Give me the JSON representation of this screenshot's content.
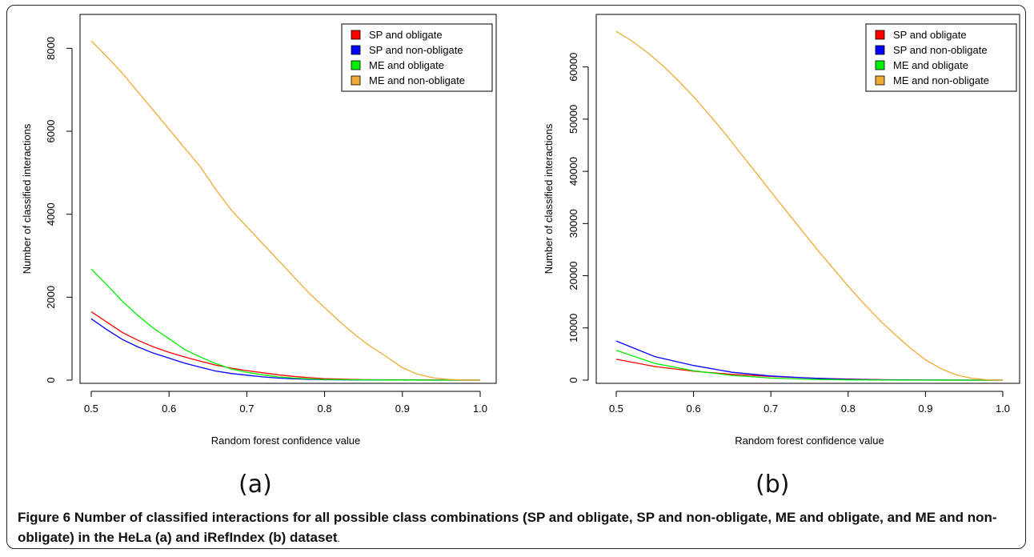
{
  "chart_data": [
    {
      "type": "line",
      "xlabel": "Random forest confidence value",
      "ylabel": "Number of classified interactions",
      "xlim": [
        0.5,
        1.0
      ],
      "ylim": [
        0,
        8200
      ],
      "xticks": [
        "0.5",
        "0.6",
        "0.7",
        "0.8",
        "0.9",
        "1.0"
      ],
      "yticks": [
        "0",
        "2000",
        "4000",
        "6000",
        "8000"
      ],
      "grid": false,
      "legend_position": "top-right",
      "series": [
        {
          "name": "SP and obligate",
          "color": "#ff0000",
          "x": [
            0.5,
            0.52,
            0.54,
            0.56,
            0.58,
            0.6,
            0.62,
            0.64,
            0.66,
            0.68,
            0.7,
            0.72,
            0.74,
            0.76,
            0.78,
            0.8,
            0.85,
            0.9,
            0.95,
            1.0
          ],
          "y": [
            1650,
            1400,
            1150,
            960,
            800,
            670,
            560,
            460,
            360,
            290,
            230,
            180,
            130,
            90,
            60,
            35,
            12,
            4,
            1,
            0
          ]
        },
        {
          "name": "SP and non-obligate",
          "color": "#0000ff",
          "x": [
            0.5,
            0.52,
            0.54,
            0.56,
            0.58,
            0.6,
            0.62,
            0.64,
            0.66,
            0.68,
            0.7,
            0.72,
            0.74,
            0.76,
            0.78,
            0.8,
            0.85,
            0.9,
            0.95,
            1.0
          ],
          "y": [
            1480,
            1220,
            980,
            800,
            650,
            530,
            410,
            310,
            220,
            160,
            120,
            80,
            50,
            30,
            20,
            10,
            4,
            1,
            0,
            0
          ]
        },
        {
          "name": "ME and obligate",
          "color": "#00ee00",
          "x": [
            0.5,
            0.52,
            0.54,
            0.56,
            0.58,
            0.6,
            0.62,
            0.64,
            0.66,
            0.68,
            0.7,
            0.72,
            0.74,
            0.76,
            0.78,
            0.8,
            0.85,
            0.9,
            0.95,
            1.0
          ],
          "y": [
            2680,
            2300,
            1900,
            1560,
            1250,
            1000,
            740,
            560,
            400,
            270,
            190,
            130,
            80,
            50,
            30,
            15,
            5,
            1,
            0,
            0
          ]
        },
        {
          "name": "ME and non-obligate",
          "color": "#eeaa33",
          "x": [
            0.5,
            0.52,
            0.54,
            0.56,
            0.58,
            0.6,
            0.62,
            0.64,
            0.66,
            0.68,
            0.7,
            0.72,
            0.74,
            0.76,
            0.78,
            0.8,
            0.82,
            0.84,
            0.86,
            0.88,
            0.9,
            0.92,
            0.94,
            0.96,
            0.98,
            1.0
          ],
          "y": [
            8180,
            7800,
            7400,
            6950,
            6500,
            6050,
            5600,
            5150,
            4600,
            4100,
            3700,
            3300,
            2900,
            2500,
            2100,
            1750,
            1400,
            1080,
            800,
            560,
            300,
            140,
            55,
            15,
            3,
            0
          ]
        }
      ]
    },
    {
      "type": "line",
      "xlabel": "Random forest confidence value",
      "ylabel": "Number of classified interactions",
      "xlim": [
        0.5,
        1.0
      ],
      "ylim": [
        0,
        67000
      ],
      "xticks": [
        "0.5",
        "0.6",
        "0.7",
        "0.8",
        "0.9",
        "1.0"
      ],
      "yticks": [
        "0",
        "10000",
        "20000",
        "30000",
        "40000",
        "50000",
        "60000"
      ],
      "grid": false,
      "legend_position": "top-right",
      "series": [
        {
          "name": "SP and obligate",
          "color": "#ff0000",
          "x": [
            0.5,
            0.55,
            0.6,
            0.65,
            0.7,
            0.75,
            0.8,
            0.85,
            0.9,
            0.95,
            1.0
          ],
          "y": [
            4000,
            2600,
            1700,
            1100,
            700,
            400,
            200,
            80,
            20,
            5,
            0
          ]
        },
        {
          "name": "SP and non-obligate",
          "color": "#0000ff",
          "x": [
            0.5,
            0.55,
            0.6,
            0.65,
            0.7,
            0.75,
            0.8,
            0.85,
            0.9,
            0.95,
            1.0
          ],
          "y": [
            7500,
            4500,
            2800,
            1500,
            800,
            400,
            150,
            50,
            10,
            2,
            0
          ]
        },
        {
          "name": "ME and obligate",
          "color": "#00ee00",
          "x": [
            0.5,
            0.55,
            0.6,
            0.65,
            0.7,
            0.75,
            0.8,
            0.85,
            0.9,
            0.95,
            1.0
          ],
          "y": [
            5700,
            3200,
            1800,
            900,
            400,
            150,
            50,
            15,
            3,
            1,
            0
          ]
        },
        {
          "name": "ME and non-obligate",
          "color": "#eeaa33",
          "x": [
            0.5,
            0.52,
            0.54,
            0.56,
            0.58,
            0.6,
            0.62,
            0.64,
            0.66,
            0.68,
            0.7,
            0.72,
            0.74,
            0.76,
            0.78,
            0.8,
            0.82,
            0.84,
            0.86,
            0.88,
            0.9,
            0.92,
            0.94,
            0.96,
            0.98,
            1.0
          ],
          "y": [
            66800,
            65000,
            62800,
            60300,
            57400,
            54300,
            50900,
            47400,
            43600,
            39900,
            36100,
            32400,
            28700,
            25000,
            21500,
            18000,
            14700,
            11600,
            8800,
            6200,
            3900,
            2200,
            1000,
            350,
            80,
            0
          ]
        }
      ]
    }
  ],
  "panel_labels": {
    "a": "(a)",
    "b": "(b)"
  },
  "caption": {
    "label": "Figure 6",
    "text": " Number of classified interactions for all possible class combinations (SP and obligate, SP and non-obligate, ME and obligate, and ME and non-obligate) in the HeLa (a) and iRefIndex (b) dataset",
    "end": "."
  }
}
